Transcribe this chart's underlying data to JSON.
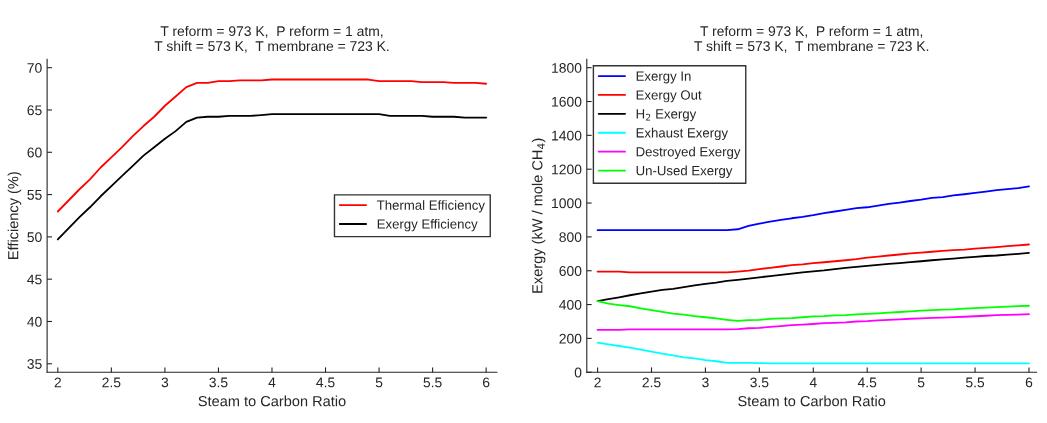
{
  "chart_data": [
    {
      "type": "line",
      "title": "T reform = 973 K,  P reform = 1 atm,\nT shift = 573 K,  T membrane = 723 K.",
      "xlabel": "Steam to Carbon Ratio",
      "ylabel": "Efficiency (%)",
      "x": [
        2,
        2.1,
        2.2,
        2.3,
        2.4,
        2.5,
        2.6,
        2.7,
        2.8,
        2.9,
        3,
        3.1,
        3.2,
        3.3,
        3.4,
        3.5,
        3.6,
        3.7,
        3.8,
        3.9,
        4,
        4.1,
        4.2,
        4.3,
        4.4,
        4.5,
        4.6,
        4.7,
        4.8,
        4.9,
        5,
        5.1,
        5.2,
        5.3,
        5.4,
        5.5,
        5.6,
        5.7,
        5.8,
        5.9,
        6
      ],
      "series": [
        {
          "name": "Thermal Efficiency",
          "color": "#ff0000",
          "values": [
            53,
            54.3,
            55.6,
            56.8,
            58.2,
            59.4,
            60.6,
            61.9,
            63.1,
            64.2,
            65.5,
            66.6,
            67.7,
            68.2,
            68.2,
            68.4,
            68.4,
            68.5,
            68.5,
            68.5,
            68.6,
            68.6,
            68.6,
            68.6,
            68.6,
            68.6,
            68.6,
            68.6,
            68.6,
            68.6,
            68.4,
            68.4,
            68.4,
            68.4,
            68.3,
            68.3,
            68.3,
            68.2,
            68.2,
            68.2,
            68.1
          ]
        },
        {
          "name": "Exergy Efficiency",
          "color": "#000000",
          "values": [
            49.7,
            51,
            52.3,
            53.5,
            54.8,
            56,
            57.2,
            58.4,
            59.6,
            60.6,
            61.6,
            62.5,
            63.6,
            64.1,
            64.2,
            64.2,
            64.3,
            64.3,
            64.3,
            64.4,
            64.5,
            64.5,
            64.5,
            64.5,
            64.5,
            64.5,
            64.5,
            64.5,
            64.5,
            64.5,
            64.5,
            64.3,
            64.3,
            64.3,
            64.3,
            64.2,
            64.2,
            64.2,
            64.1,
            64.1,
            64.1
          ]
        }
      ],
      "xlim": [
        1.9,
        6.1
      ],
      "ylim": [
        34,
        71
      ],
      "xticks": [
        2,
        2.5,
        3,
        3.5,
        4,
        4.5,
        5,
        5.5,
        6
      ],
      "yticks": [
        35,
        40,
        45,
        50,
        55,
        60,
        65,
        70
      ],
      "grid": false,
      "legend": "right"
    },
    {
      "type": "line",
      "title": "T reform = 973 K,  P reform = 1 atm,\nT shift = 573 K,  T membrane = 723 K.",
      "xlabel": "Steam to Carbon Ratio",
      "ylabel": "Exergy (kW / mole CH$_{4}$)",
      "x": [
        2,
        2.1,
        2.2,
        2.3,
        2.4,
        2.5,
        2.6,
        2.7,
        2.8,
        2.9,
        3,
        3.1,
        3.2,
        3.3,
        3.4,
        3.5,
        3.6,
        3.7,
        3.8,
        3.9,
        4,
        4.1,
        4.2,
        4.3,
        4.4,
        4.5,
        4.6,
        4.7,
        4.8,
        4.9,
        5,
        5.1,
        5.2,
        5.3,
        5.4,
        5.5,
        5.6,
        5.7,
        5.8,
        5.9,
        6
      ],
      "series": [
        {
          "name": "Exergy In",
          "color": "#0000ff",
          "values": [
            840,
            840,
            840,
            840,
            840,
            840,
            840,
            840,
            840,
            840,
            840,
            840,
            840,
            845,
            865,
            878,
            890,
            900,
            910,
            918,
            928,
            940,
            950,
            960,
            970,
            975,
            985,
            995,
            1003,
            1012,
            1020,
            1030,
            1035,
            1045,
            1052,
            1060,
            1068,
            1076,
            1082,
            1088,
            1098
          ]
        },
        {
          "name": "Exergy Out",
          "color": "#ff0000",
          "values": [
            595,
            595,
            595,
            590,
            590,
            590,
            590,
            590,
            590,
            590,
            590,
            590,
            590,
            595,
            600,
            610,
            617,
            625,
            633,
            638,
            645,
            650,
            656,
            662,
            668,
            677,
            683,
            690,
            696,
            702,
            707,
            712,
            717,
            722,
            725,
            730,
            735,
            740,
            745,
            750,
            755
          ]
        },
        {
          "name": "H$_{2}$ Exergy",
          "color": "#000000",
          "values": [
            420,
            432,
            443,
            455,
            466,
            477,
            487,
            493,
            503,
            513,
            522,
            530,
            540,
            546,
            553,
            561,
            568,
            575,
            583,
            590,
            596,
            602,
            610,
            617,
            623,
            629,
            634,
            640,
            645,
            651,
            656,
            662,
            667,
            672,
            677,
            682,
            687,
            690,
            695,
            700,
            705
          ]
        },
        {
          "name": "Exhaust Exergy",
          "color": "#00ffff",
          "values": [
            175,
            165,
            155,
            145,
            133,
            122,
            110,
            100,
            88,
            82,
            72,
            65,
            55,
            55,
            55,
            54,
            52,
            52,
            52,
            52,
            52,
            52,
            52,
            52,
            52,
            52,
            52,
            52,
            52,
            52,
            52,
            52,
            52,
            52,
            52,
            52,
            52,
            52,
            52,
            52,
            52
          ]
        },
        {
          "name": "Destroyed Exergy",
          "color": "#ff00ff",
          "values": [
            250,
            250,
            250,
            253,
            253,
            253,
            253,
            253,
            253,
            253,
            253,
            253,
            253,
            255,
            260,
            262,
            268,
            273,
            278,
            281,
            285,
            290,
            292,
            295,
            300,
            302,
            306,
            310,
            313,
            316,
            318,
            321,
            323,
            326,
            328,
            331,
            334,
            337,
            339,
            341,
            343
          ]
        },
        {
          "name": "Un-Used Exergy",
          "color": "#00ff00",
          "values": [
            420,
            405,
            397,
            390,
            378,
            367,
            357,
            347,
            340,
            332,
            325,
            318,
            310,
            303,
            308,
            310,
            315,
            318,
            320,
            325,
            330,
            332,
            336,
            338,
            342,
            345,
            348,
            352,
            356,
            360,
            364,
            367,
            370,
            372,
            376,
            379,
            382,
            385,
            388,
            391,
            393
          ]
        }
      ],
      "xlim": [
        1.9,
        6.07
      ],
      "ylim": [
        0,
        1850
      ],
      "xticks": [
        2,
        2.5,
        3,
        3.5,
        4,
        4.5,
        5,
        5.5,
        6
      ],
      "yticks": [
        0,
        200,
        400,
        600,
        800,
        1000,
        1200,
        1400,
        1600,
        1800
      ],
      "grid": false,
      "legend": "top left"
    }
  ]
}
